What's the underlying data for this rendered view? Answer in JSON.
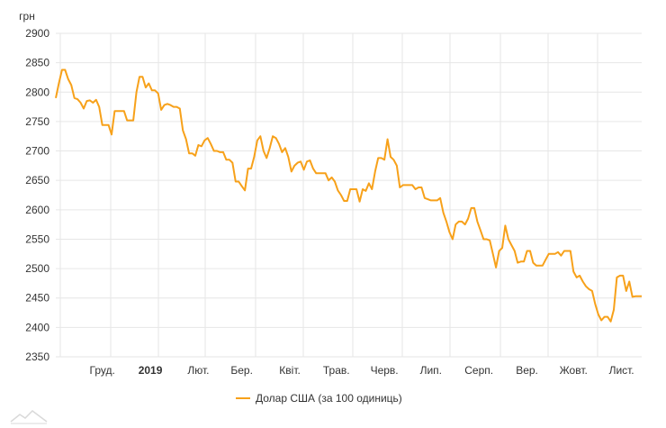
{
  "chart_data": {
    "type": "line",
    "title": "",
    "unit_label": "грн",
    "xlabel": "",
    "ylabel": "",
    "ylim": [
      2350,
      2900
    ],
    "y_ticks": [
      2900,
      2850,
      2800,
      2750,
      2700,
      2650,
      2600,
      2550,
      2500,
      2450,
      2400,
      2350
    ],
    "x_ticks": [
      {
        "label": "Груд.",
        "bold": false,
        "pos": 30
      },
      {
        "label": "2019",
        "bold": true,
        "pos": 61
      },
      {
        "label": "Лют.",
        "bold": false,
        "pos": 92
      },
      {
        "label": "Бер.",
        "bold": false,
        "pos": 120
      },
      {
        "label": "Квіт.",
        "bold": false,
        "pos": 151
      },
      {
        "label": "Трав.",
        "bold": false,
        "pos": 181
      },
      {
        "label": "Черв.",
        "bold": false,
        "pos": 212
      },
      {
        "label": "Лип.",
        "bold": false,
        "pos": 242
      },
      {
        "label": "Серп.",
        "bold": false,
        "pos": 273
      },
      {
        "label": "Вер.",
        "bold": false,
        "pos": 304
      },
      {
        "label": "Жовт.",
        "bold": false,
        "pos": 334
      },
      {
        "label": "Лист.",
        "bold": false,
        "pos": 365
      }
    ],
    "xlim": [
      0,
      378
    ],
    "grid": true,
    "legend_position": "bottom-center",
    "colors": {
      "series": "#f7a11a",
      "grid": "#e6e6e6",
      "text": "#333333"
    },
    "series": [
      {
        "name": "Долар США (за 100 одиниць)",
        "points": [
          [
            0,
            2790
          ],
          [
            2,
            2815
          ],
          [
            4,
            2838
          ],
          [
            6,
            2838
          ],
          [
            8,
            2822
          ],
          [
            10,
            2812
          ],
          [
            12,
            2790
          ],
          [
            14,
            2788
          ],
          [
            16,
            2782
          ],
          [
            18,
            2772
          ],
          [
            20,
            2785
          ],
          [
            22,
            2786
          ],
          [
            24,
            2782
          ],
          [
            26,
            2787
          ],
          [
            28,
            2775
          ],
          [
            30,
            2744
          ],
          [
            32,
            2744
          ],
          [
            34,
            2744
          ],
          [
            36,
            2728
          ],
          [
            38,
            2768
          ],
          [
            40,
            2768
          ],
          [
            42,
            2768
          ],
          [
            44,
            2768
          ],
          [
            46,
            2752
          ],
          [
            48,
            2752
          ],
          [
            50,
            2752
          ],
          [
            52,
            2800
          ],
          [
            54,
            2826
          ],
          [
            56,
            2826
          ],
          [
            58,
            2808
          ],
          [
            60,
            2815
          ],
          [
            62,
            2803
          ],
          [
            64,
            2803
          ],
          [
            66,
            2798
          ],
          [
            68,
            2770
          ],
          [
            70,
            2778
          ],
          [
            72,
            2780
          ],
          [
            74,
            2778
          ],
          [
            76,
            2775
          ],
          [
            78,
            2775
          ],
          [
            80,
            2772
          ],
          [
            82,
            2735
          ],
          [
            84,
            2720
          ],
          [
            86,
            2696
          ],
          [
            88,
            2696
          ],
          [
            90,
            2692
          ],
          [
            92,
            2710
          ],
          [
            94,
            2708
          ],
          [
            96,
            2718
          ],
          [
            98,
            2722
          ],
          [
            100,
            2712
          ],
          [
            102,
            2700
          ],
          [
            104,
            2700
          ],
          [
            106,
            2698
          ],
          [
            108,
            2698
          ],
          [
            110,
            2685
          ],
          [
            112,
            2685
          ],
          [
            114,
            2680
          ],
          [
            116,
            2648
          ],
          [
            118,
            2648
          ],
          [
            120,
            2640
          ],
          [
            122,
            2633
          ],
          [
            124,
            2670
          ],
          [
            126,
            2670
          ],
          [
            128,
            2690
          ],
          [
            130,
            2718
          ],
          [
            132,
            2725
          ],
          [
            134,
            2700
          ],
          [
            136,
            2688
          ],
          [
            138,
            2705
          ],
          [
            140,
            2725
          ],
          [
            142,
            2722
          ],
          [
            144,
            2712
          ],
          [
            146,
            2698
          ],
          [
            148,
            2705
          ],
          [
            150,
            2690
          ],
          [
            152,
            2665
          ],
          [
            154,
            2675
          ],
          [
            156,
            2680
          ],
          [
            158,
            2682
          ],
          [
            160,
            2668
          ],
          [
            162,
            2682
          ],
          [
            164,
            2684
          ],
          [
            166,
            2670
          ],
          [
            168,
            2662
          ],
          [
            170,
            2662
          ],
          [
            172,
            2662
          ],
          [
            174,
            2662
          ],
          [
            176,
            2650
          ],
          [
            178,
            2655
          ],
          [
            180,
            2648
          ],
          [
            182,
            2633
          ],
          [
            184,
            2625
          ],
          [
            186,
            2615
          ],
          [
            188,
            2615
          ],
          [
            190,
            2635
          ],
          [
            192,
            2635
          ],
          [
            194,
            2635
          ],
          [
            196,
            2614
          ],
          [
            198,
            2635
          ],
          [
            200,
            2632
          ],
          [
            202,
            2645
          ],
          [
            204,
            2635
          ],
          [
            206,
            2665
          ],
          [
            208,
            2688
          ],
          [
            210,
            2688
          ],
          [
            212,
            2685
          ],
          [
            214,
            2720
          ],
          [
            216,
            2690
          ],
          [
            218,
            2685
          ],
          [
            220,
            2675
          ],
          [
            222,
            2638
          ],
          [
            224,
            2642
          ],
          [
            226,
            2642
          ],
          [
            228,
            2642
          ],
          [
            230,
            2642
          ],
          [
            232,
            2635
          ],
          [
            234,
            2638
          ],
          [
            236,
            2638
          ],
          [
            238,
            2620
          ],
          [
            240,
            2618
          ],
          [
            242,
            2616
          ],
          [
            244,
            2616
          ],
          [
            246,
            2616
          ],
          [
            248,
            2620
          ],
          [
            250,
            2595
          ],
          [
            252,
            2580
          ],
          [
            254,
            2562
          ],
          [
            256,
            2550
          ],
          [
            258,
            2575
          ],
          [
            260,
            2580
          ],
          [
            262,
            2580
          ],
          [
            264,
            2575
          ],
          [
            266,
            2585
          ],
          [
            268,
            2603
          ],
          [
            270,
            2603
          ],
          [
            272,
            2580
          ],
          [
            274,
            2565
          ],
          [
            276,
            2550
          ],
          [
            278,
            2550
          ],
          [
            280,
            2548
          ],
          [
            282,
            2525
          ],
          [
            284,
            2502
          ],
          [
            286,
            2530
          ],
          [
            288,
            2535
          ],
          [
            290,
            2573
          ],
          [
            292,
            2550
          ],
          [
            294,
            2540
          ],
          [
            296,
            2530
          ],
          [
            298,
            2510
          ],
          [
            300,
            2512
          ],
          [
            302,
            2512
          ],
          [
            304,
            2530
          ],
          [
            306,
            2530
          ],
          [
            308,
            2510
          ],
          [
            310,
            2505
          ],
          [
            312,
            2505
          ],
          [
            314,
            2505
          ],
          [
            316,
            2515
          ],
          [
            318,
            2525
          ],
          [
            320,
            2525
          ],
          [
            322,
            2525
          ],
          [
            324,
            2528
          ],
          [
            326,
            2522
          ],
          [
            328,
            2530
          ],
          [
            330,
            2530
          ],
          [
            332,
            2530
          ],
          [
            334,
            2495
          ],
          [
            336,
            2485
          ],
          [
            338,
            2488
          ],
          [
            340,
            2478
          ],
          [
            342,
            2470
          ],
          [
            344,
            2465
          ],
          [
            346,
            2462
          ],
          [
            348,
            2440
          ],
          [
            350,
            2422
          ],
          [
            352,
            2412
          ],
          [
            354,
            2418
          ],
          [
            356,
            2418
          ],
          [
            358,
            2410
          ],
          [
            360,
            2430
          ],
          [
            362,
            2485
          ],
          [
            364,
            2488
          ],
          [
            366,
            2488
          ],
          [
            368,
            2462
          ],
          [
            370,
            2478
          ],
          [
            372,
            2452
          ],
          [
            374,
            2453
          ],
          [
            376,
            2453
          ],
          [
            378,
            2453
          ]
        ]
      }
    ]
  }
}
